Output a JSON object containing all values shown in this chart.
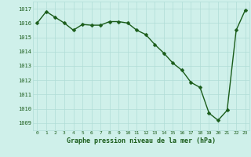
{
  "x": [
    0,
    1,
    2,
    3,
    4,
    5,
    6,
    7,
    8,
    9,
    10,
    11,
    12,
    13,
    14,
    15,
    16,
    17,
    18,
    19,
    20,
    21,
    22,
    23
  ],
  "y": [
    1016.0,
    1016.8,
    1016.4,
    1016.0,
    1015.5,
    1015.9,
    1015.85,
    1015.85,
    1016.1,
    1016.1,
    1016.0,
    1015.5,
    1015.2,
    1014.5,
    1013.9,
    1013.2,
    1012.7,
    1011.85,
    1011.5,
    1009.7,
    1009.2,
    1009.9,
    1015.5,
    1016.9
  ],
  "line_color": "#1a5c1a",
  "marker_color": "#1a5c1a",
  "bg_color": "#cff0ea",
  "grid_color": "#b0ddd6",
  "xlabel": "Graphe pression niveau de la mer (hPa)",
  "xlabel_color": "#1a5c1a",
  "tick_color": "#1a5c1a",
  "ylim": [
    1008.5,
    1017.5
  ],
  "yticks": [
    1009,
    1010,
    1011,
    1012,
    1013,
    1014,
    1015,
    1016,
    1017
  ],
  "xticks": [
    0,
    1,
    2,
    3,
    4,
    5,
    6,
    7,
    8,
    9,
    10,
    11,
    12,
    13,
    14,
    15,
    16,
    17,
    18,
    19,
    20,
    21,
    22,
    23
  ],
  "marker_size": 2.5,
  "line_width": 1.0
}
